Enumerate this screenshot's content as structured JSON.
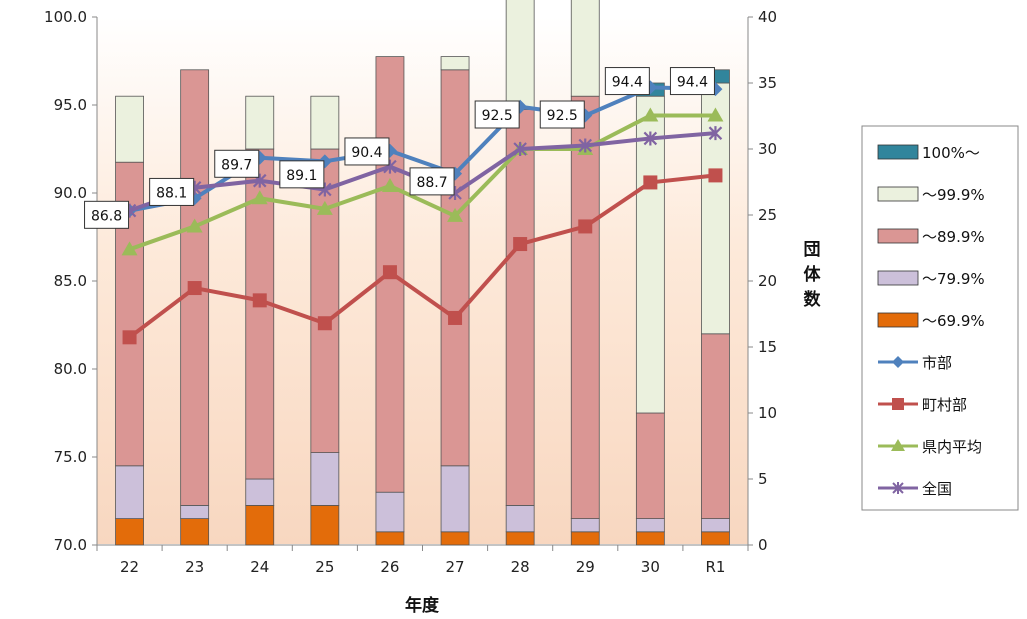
{
  "chart_data": {
    "type": "bar",
    "subtype": "stacked-bar-with-lines",
    "categories": [
      "22",
      "23",
      "24",
      "25",
      "26",
      "27",
      "28",
      "29",
      "30",
      "R1"
    ],
    "xlabel": "年度",
    "ylabel_right": "団体数",
    "ylim_left": [
      70,
      100
    ],
    "yticks_left": [
      "70.0",
      "75.0",
      "80.0",
      "85.0",
      "90.0",
      "95.0",
      "100.0"
    ],
    "ylim_right": [
      0,
      40
    ],
    "yticks_right": [
      "0",
      "5",
      "10",
      "15",
      "20",
      "25",
      "30",
      "35",
      "40"
    ],
    "grid": false,
    "legend_position": "right",
    "bar_series": [
      {
        "name": "～69.9%",
        "color": "#E36C0A",
        "values": [
          2,
          2,
          3,
          3,
          1,
          1,
          1,
          1,
          1,
          1
        ]
      },
      {
        "name": "～79.9%",
        "color": "#CCC0DA",
        "values": [
          4,
          1,
          2,
          4,
          3,
          5,
          2,
          1,
          1,
          1
        ]
      },
      {
        "name": "～89.9%",
        "color": "#DA9694",
        "values": [
          23,
          33,
          25,
          23,
          33,
          30,
          30,
          32,
          8,
          14
        ]
      },
      {
        "name": "～99.9%",
        "color": "#EBF1DE",
        "values": [
          5,
          0,
          4,
          4,
          0,
          1,
          11,
          16,
          24,
          19
        ]
      },
      {
        "name": "100%～",
        "color": "#31859C",
        "values": [
          0,
          0,
          0,
          0,
          0,
          0,
          0,
          1,
          1,
          1
        ]
      }
    ],
    "line_series": [
      {
        "name": "市部",
        "color": "#4F81BD",
        "marker": "diamond",
        "values": [
          89.0,
          89.7,
          92.0,
          91.8,
          92.4,
          91.1,
          94.9,
          94.4,
          96.0,
          95.9
        ]
      },
      {
        "name": "町村部",
        "color": "#C0504D",
        "marker": "square",
        "values": [
          81.8,
          84.6,
          83.9,
          82.6,
          85.5,
          82.9,
          87.1,
          88.1,
          90.6,
          91.0
        ]
      },
      {
        "name": "県内平均",
        "color": "#9BBB59",
        "marker": "triangle",
        "values": [
          86.8,
          88.1,
          89.7,
          89.1,
          90.4,
          88.7,
          92.5,
          92.5,
          94.4,
          94.4
        ],
        "data_labels": [
          "86.8",
          "88.1",
          "89.7",
          "89.1",
          "90.4",
          "88.7",
          "92.5",
          "92.5",
          "94.4",
          "94.4"
        ]
      },
      {
        "name": "全国",
        "color": "#8064A2",
        "marker": "x",
        "values": [
          89.0,
          90.3,
          90.7,
          90.2,
          91.5,
          90.0,
          92.5,
          92.7,
          93.1,
          93.4
        ]
      }
    ],
    "legend_order": [
      "100%～",
      "～99.9%",
      "～89.9%",
      "～79.9%",
      "～69.9%",
      "市部",
      "町村部",
      "県内平均",
      "全国"
    ]
  }
}
